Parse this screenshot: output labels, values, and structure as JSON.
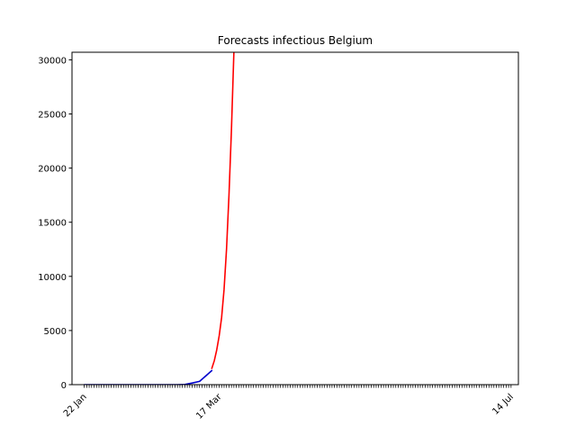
{
  "chart_data": {
    "type": "line",
    "title": "Forecasts infectious Belgium",
    "xlabel": "",
    "ylabel": "",
    "x_axis": {
      "type": "date",
      "range": [
        "2020-01-17",
        "2020-07-17"
      ],
      "tick_labels": [
        {
          "date": "2020-01-22",
          "label": "22 Jan"
        },
        {
          "date": "2020-03-17",
          "label": "17 Mar"
        },
        {
          "date": "2020-07-14",
          "label": "14 Jul"
        }
      ],
      "minor_ticks": {
        "start": "2020-01-22",
        "end": "2020-07-14",
        "step_days": 1
      }
    },
    "y_axis": {
      "range": [
        0,
        30700
      ],
      "ticks": [
        0,
        5000,
        10000,
        15000,
        20000,
        25000,
        30000
      ]
    },
    "grid": false,
    "legend": "none",
    "series": [
      {
        "color": "#0000cc",
        "points": [
          [
            "2020-01-22",
            0
          ],
          [
            "2020-02-01",
            0
          ],
          [
            "2020-02-15",
            0
          ],
          [
            "2020-02-29",
            0
          ],
          [
            "2020-03-03",
            20
          ],
          [
            "2020-03-06",
            150
          ],
          [
            "2020-03-09",
            300
          ],
          [
            "2020-03-11",
            700
          ],
          [
            "2020-03-14",
            1300
          ]
        ]
      },
      {
        "color": "#ff0000",
        "points": [
          [
            "2020-03-14",
            1500
          ],
          [
            "2020-03-15",
            2200
          ],
          [
            "2020-03-16",
            3200
          ],
          [
            "2020-03-17",
            4500
          ],
          [
            "2020-03-18",
            6200
          ],
          [
            "2020-03-19",
            8800
          ],
          [
            "2020-03-20",
            12500
          ],
          [
            "2020-03-21",
            17500
          ],
          [
            "2020-03-22",
            23500
          ],
          [
            "2020-03-23",
            30700
          ]
        ]
      }
    ]
  }
}
